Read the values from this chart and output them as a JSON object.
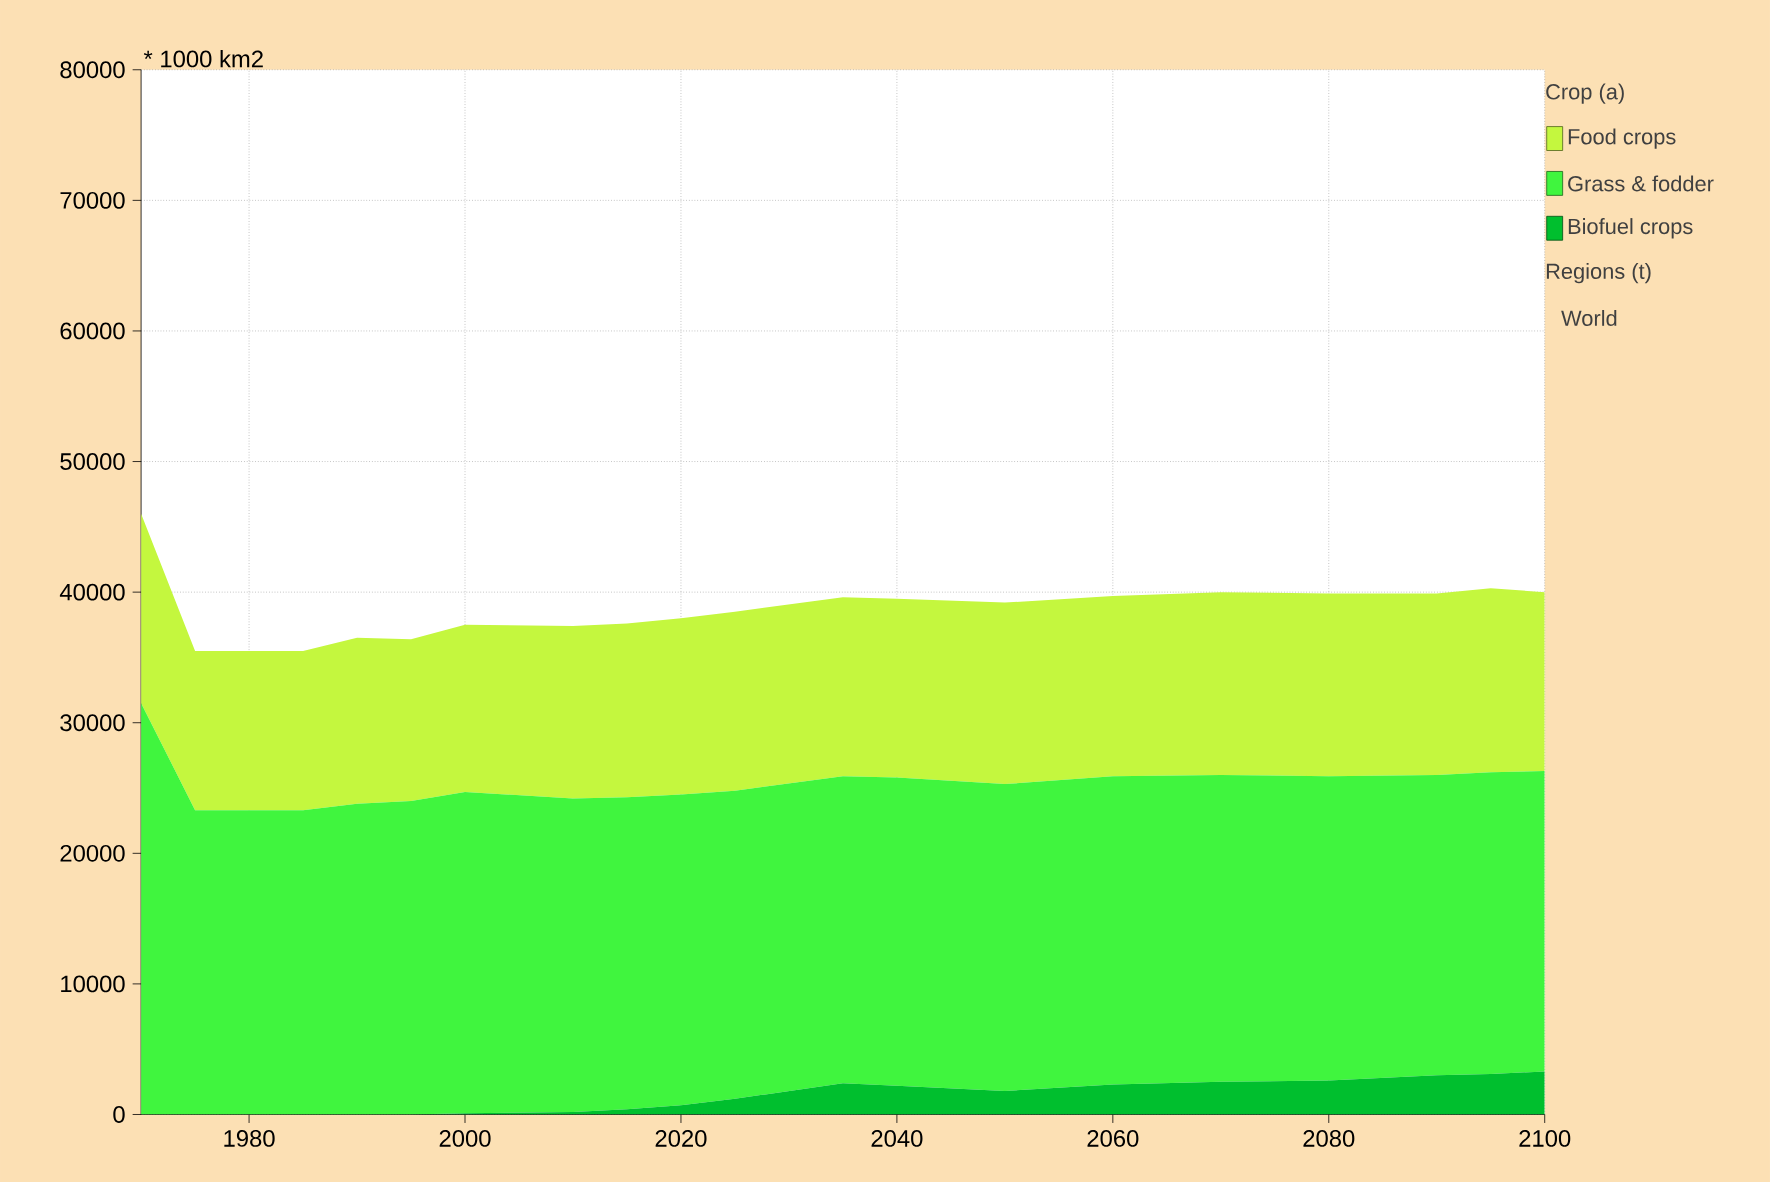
{
  "chart_data": {
    "type": "area",
    "stacked": true,
    "ylabel": "* 1000 km2",
    "legend_title": "Crop (a)",
    "annotations": [
      "Regions (t)",
      "World"
    ],
    "x": [
      1970,
      1975,
      1985,
      1990,
      1995,
      2000,
      2010,
      2015,
      2020,
      2025,
      2035,
      2040,
      2050,
      2060,
      2070,
      2080,
      2090,
      2095,
      2100
    ],
    "series": [
      {
        "name": "Biofuel crops",
        "color": "#00bf2e",
        "values": [
          0,
          0,
          0,
          0,
          0,
          100,
          200,
          400,
          700,
          1200,
          2400,
          2200,
          1800,
          2300,
          2500,
          2600,
          3000,
          3100,
          3300
        ]
      },
      {
        "name": "Grass & fodder",
        "color": "#40f53e",
        "values": [
          31500,
          23300,
          23300,
          23800,
          24000,
          24600,
          24000,
          23900,
          23800,
          23600,
          23500,
          23600,
          23500,
          23600,
          23500,
          23300,
          23000,
          23100,
          23000
        ]
      },
      {
        "name": "Food crops",
        "color": "#c4f73e",
        "values": [
          14500,
          12200,
          12200,
          12700,
          12400,
          12800,
          13200,
          13300,
          13500,
          13700,
          13700,
          13700,
          13900,
          13800,
          14000,
          14000,
          13900,
          14100,
          13700
        ]
      }
    ],
    "xlim": [
      1970,
      2100
    ],
    "xticks": [
      1980,
      2000,
      2020,
      2040,
      2060,
      2080,
      2100
    ],
    "ylim": [
      0,
      80000
    ],
    "yticks": [
      0,
      10000,
      20000,
      30000,
      40000,
      50000,
      60000,
      70000,
      80000
    ],
    "grid": true,
    "legend": "top right"
  }
}
